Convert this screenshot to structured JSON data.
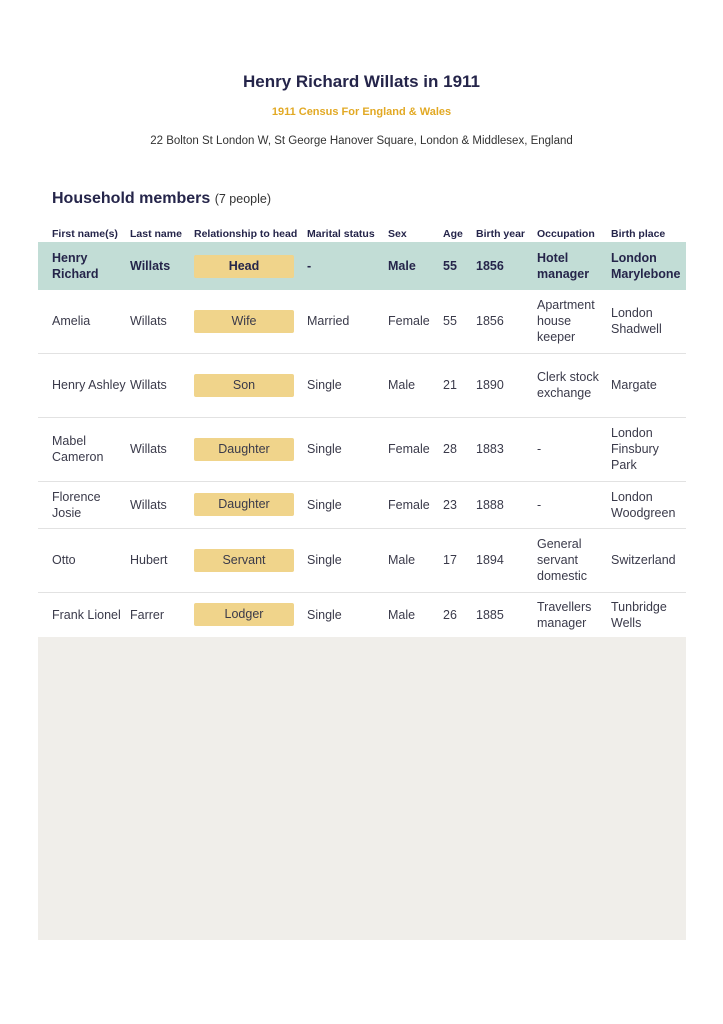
{
  "title": "Henry Richard Willats in 1911",
  "subtitle": "1911 Census For England & Wales",
  "address": "22 Bolton St London W, St George Hanover Square, London & Middlesex, England",
  "household": {
    "heading": "Household members",
    "count": "(7 people)",
    "columns": [
      "First name(s)",
      "Last name",
      "Relationship to head",
      "Marital status",
      "Sex",
      "Age",
      "Birth year",
      "Occupation",
      "Birth place"
    ],
    "rows": [
      {
        "first": "Henry Richard",
        "last": "Willats",
        "relationship": "Head",
        "marital": "-",
        "sex": "Male",
        "age": "55",
        "birth_year": "1856",
        "occupation": "Hotel manager",
        "birth_place": "London Marylebone"
      },
      {
        "first": "Amelia",
        "last": "Willats",
        "relationship": "Wife",
        "marital": "Married",
        "sex": "Female",
        "age": "55",
        "birth_year": "1856",
        "occupation": "Apartment house keeper",
        "birth_place": "London Shadwell"
      },
      {
        "first": "Henry Ashley",
        "last": "Willats",
        "relationship": "Son",
        "marital": "Single",
        "sex": "Male",
        "age": "21",
        "birth_year": "1890",
        "occupation": "Clerk stock exchange",
        "birth_place": "Margate"
      },
      {
        "first": "Mabel Cameron",
        "last": "Willats",
        "relationship": "Daughter",
        "marital": "Single",
        "sex": "Female",
        "age": "28",
        "birth_year": "1883",
        "occupation": "-",
        "birth_place": "London Finsbury Park"
      },
      {
        "first": "Florence Josie",
        "last": "Willats",
        "relationship": "Daughter",
        "marital": "Single",
        "sex": "Female",
        "age": "23",
        "birth_year": "1888",
        "occupation": "-",
        "birth_place": "London Woodgreen"
      },
      {
        "first": "Otto",
        "last": "Hubert",
        "relationship": "Servant",
        "marital": "Single",
        "sex": "Male",
        "age": "17",
        "birth_year": "1894",
        "occupation": "General servant domestic",
        "birth_place": "Switzerland"
      },
      {
        "first": "Frank Lionel",
        "last": "Farrer",
        "relationship": "Lodger",
        "marital": "Single",
        "sex": "Male",
        "age": "26",
        "birth_year": "1885",
        "occupation": "Travellers manager",
        "birth_place": "Tunbridge Wells"
      }
    ]
  },
  "colors": {
    "highlight_row": "#c2ddd6",
    "badge": "#f0d48b",
    "accent": "#e2a924"
  }
}
